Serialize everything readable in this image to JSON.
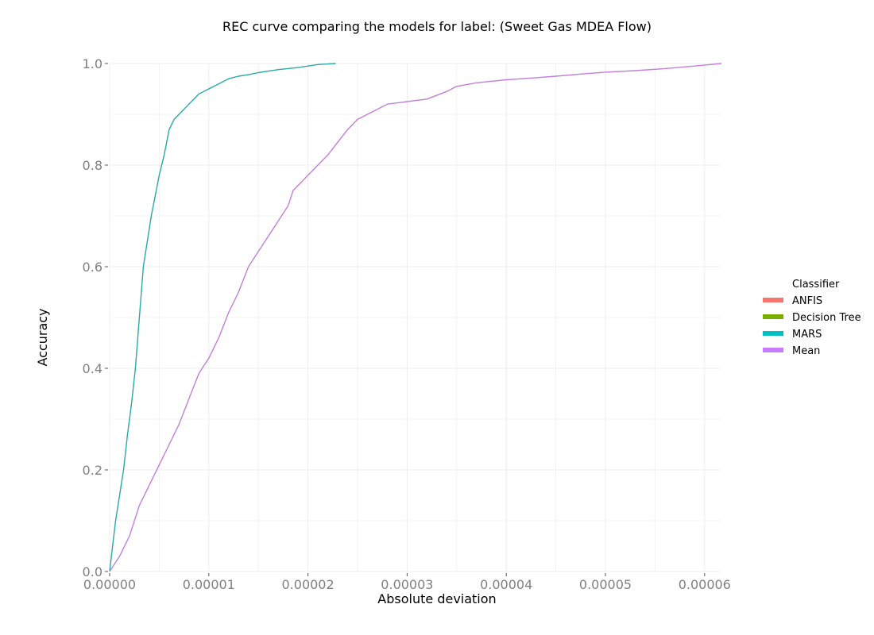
{
  "chart_data": {
    "type": "line",
    "title": "REC curve comparing the models for label: (Sweet Gas MDEA Flow)",
    "xlabel": "Absolute deviation",
    "ylabel": "Accuracy",
    "xlim": [
      0,
      6.17e-05
    ],
    "ylim": [
      0,
      1.0
    ],
    "x_ticks": [
      0,
      1e-05,
      2e-05,
      3e-05,
      4e-05,
      5e-05,
      6e-05
    ],
    "x_tick_labels": [
      "0.00000",
      "0.00001",
      "0.00002",
      "0.00003",
      "0.00004",
      "0.00005",
      "0.00006"
    ],
    "y_ticks": [
      0,
      0.2,
      0.4,
      0.6,
      0.8,
      1.0
    ],
    "y_tick_labels": [
      "0.0",
      "0.2",
      "0.4",
      "0.6",
      "0.8",
      "1.0"
    ],
    "grid": true,
    "legend": {
      "title": "Classifier",
      "placement": "right",
      "entries": [
        {
          "name": "ANFIS",
          "color": "#F8766D"
        },
        {
          "name": "Decision Tree",
          "color": "#7CAE00"
        },
        {
          "name": "MARS",
          "color": "#00BFC4"
        },
        {
          "name": "Mean",
          "color": "#C77CFF"
        }
      ]
    },
    "series": [
      {
        "name": "MARS",
        "color": "#2BA8A8",
        "x": [
          0,
          3e-07,
          6e-07,
          1e-06,
          1.4e-06,
          1.8e-06,
          2.2e-06,
          2.6e-06,
          3e-06,
          3.4e-06,
          3.8e-06,
          4.2e-06,
          4.6e-06,
          5e-06,
          5.5e-06,
          6e-06,
          6.5e-06,
          7e-06,
          8e-06,
          9e-06,
          1e-05,
          1.1e-05,
          1.2e-05,
          1.3e-05,
          1.4e-05,
          1.5e-05,
          1.6e-05,
          1.7e-05,
          1.8e-05,
          1.9e-05,
          2e-05,
          2.1e-05,
          2.2e-05,
          2.28e-05
        ],
        "y": [
          0,
          0.05,
          0.1,
          0.15,
          0.2,
          0.27,
          0.33,
          0.4,
          0.5,
          0.6,
          0.65,
          0.7,
          0.74,
          0.78,
          0.82,
          0.87,
          0.89,
          0.9,
          0.92,
          0.94,
          0.95,
          0.96,
          0.97,
          0.975,
          0.978,
          0.982,
          0.985,
          0.988,
          0.99,
          0.992,
          0.995,
          0.998,
          0.999,
          1.0
        ]
      },
      {
        "name": "Mean",
        "color": "#C27FD8",
        "x": [
          0,
          1e-06,
          2e-06,
          3e-06,
          4e-06,
          5e-06,
          6e-06,
          7e-06,
          8e-06,
          9e-06,
          1e-05,
          1.1e-05,
          1.2e-05,
          1.3e-05,
          1.4e-05,
          1.5e-05,
          1.6e-05,
          1.7e-05,
          1.8e-05,
          1.85e-05,
          2e-05,
          2.1e-05,
          2.2e-05,
          2.28e-05,
          2.4e-05,
          2.5e-05,
          2.6e-05,
          2.7e-05,
          2.8e-05,
          3e-05,
          3.2e-05,
          3.4e-05,
          3.5e-05,
          3.7e-05,
          4e-05,
          4.3e-05,
          4.5e-05,
          4.8e-05,
          5e-05,
          5.3e-05,
          5.6e-05,
          5.9e-05,
          6.17e-05
        ],
        "y": [
          0,
          0.03,
          0.07,
          0.13,
          0.17,
          0.21,
          0.25,
          0.29,
          0.34,
          0.39,
          0.42,
          0.46,
          0.51,
          0.55,
          0.6,
          0.63,
          0.66,
          0.69,
          0.72,
          0.75,
          0.78,
          0.8,
          0.82,
          0.84,
          0.87,
          0.89,
          0.9,
          0.91,
          0.92,
          0.925,
          0.93,
          0.945,
          0.955,
          0.962,
          0.968,
          0.972,
          0.975,
          0.98,
          0.983,
          0.986,
          0.99,
          0.995,
          1.0
        ]
      }
    ]
  }
}
